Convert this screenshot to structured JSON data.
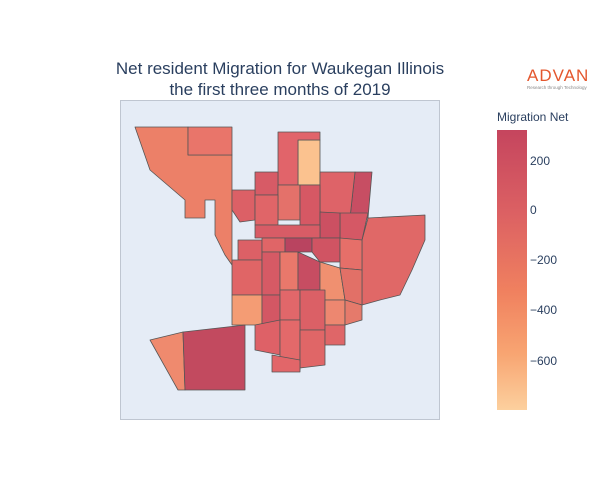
{
  "title_line1": "Net resident Migration for Waukegan Illinois",
  "title_line2": "the first three months of 2019",
  "logo": {
    "word": "ADVAN",
    "tagline": "Research through Technology",
    "color": "#e4572e"
  },
  "colorbar": {
    "title": "Migration Net",
    "ticks": [
      "200",
      "0",
      "−200",
      "−400",
      "−600"
    ],
    "colors": [
      "#c5455e",
      "#dc6163",
      "#f0815f",
      "#f8a572",
      "#fcd09e"
    ]
  },
  "map": {
    "background": "#e5ecf6",
    "region_stroke": "#555555"
  }
}
